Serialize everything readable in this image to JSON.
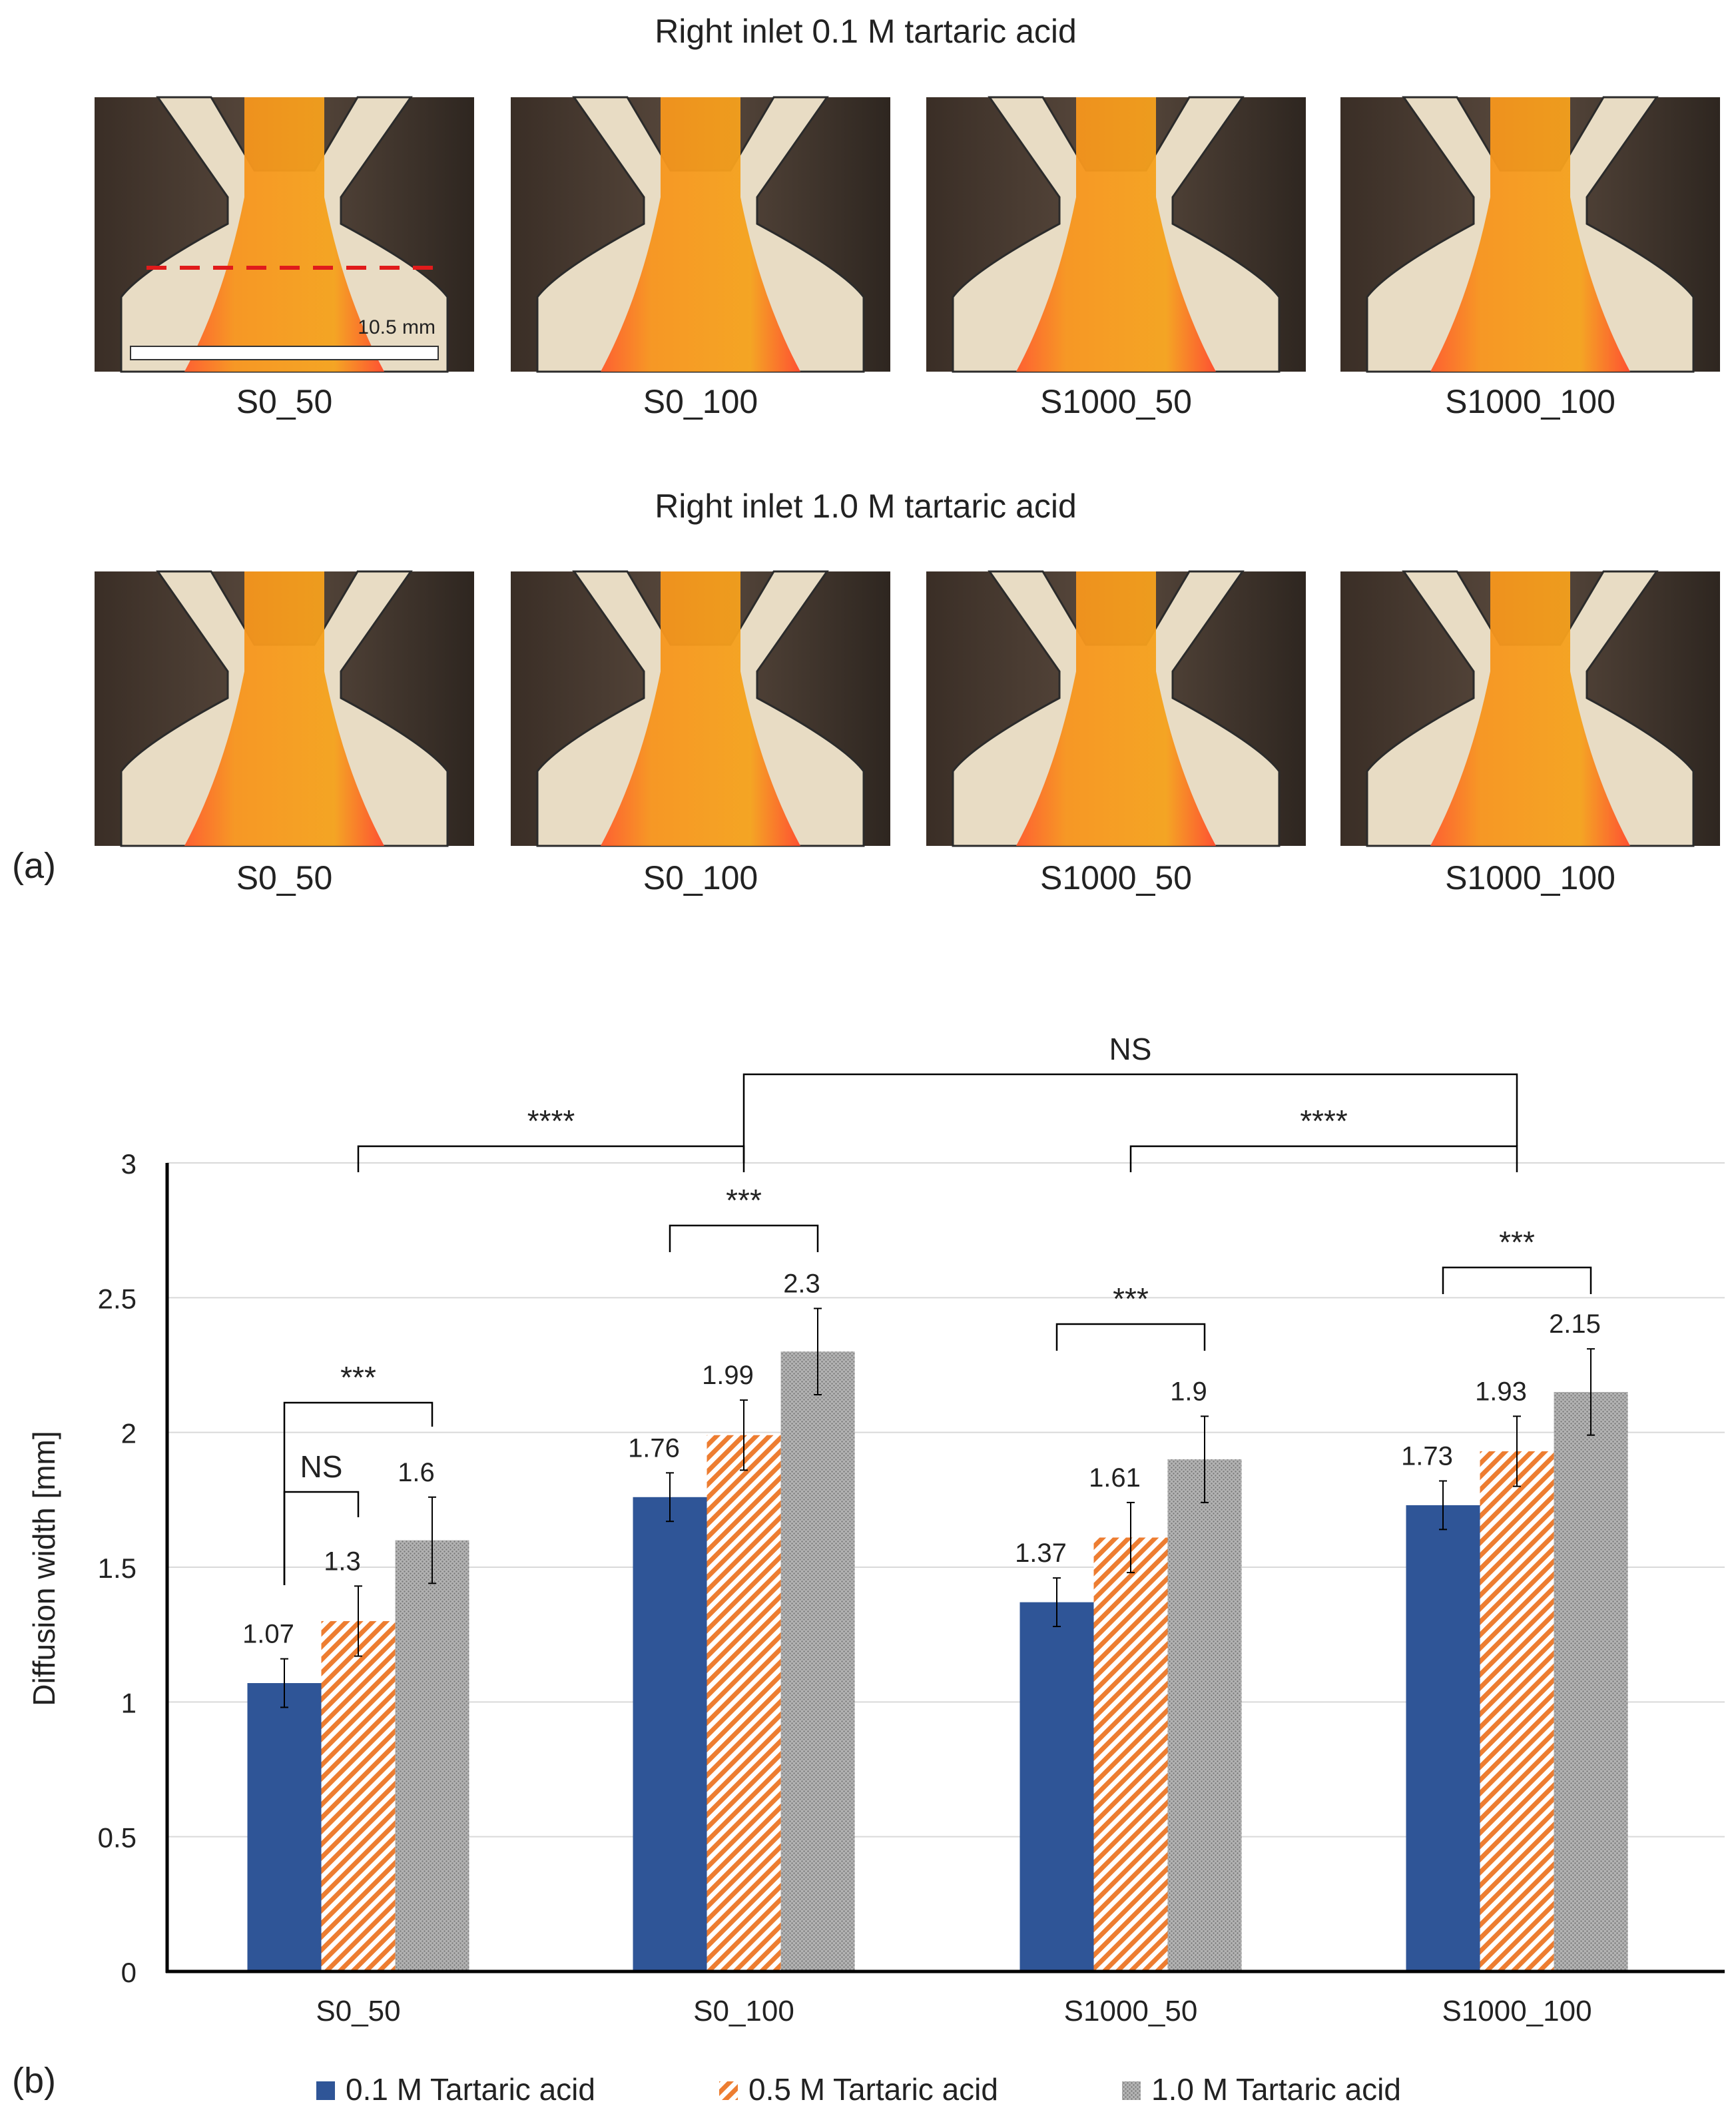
{
  "panel_a": {
    "label": "(a)",
    "rows": [
      {
        "title": "Right inlet 0.1 M tartaric acid",
        "captions": [
          "S0_50",
          "S0_100",
          "S1000_50",
          "S1000_100"
        ]
      },
      {
        "title": "Right inlet 1.0 M tartaric acid",
        "captions": [
          "S0_50",
          "S0_100",
          "S1000_50",
          "S1000_100"
        ]
      }
    ],
    "scale_bar": "10.5 mm",
    "colors": {
      "frame": "#4a3b30",
      "paper": "#e8dcc4",
      "dye": "#f5a21c",
      "acid_front": "#ff4a2a",
      "cut_line": "#e01b1b"
    }
  },
  "panel_b": {
    "label": "(b)",
    "legend": [
      "0.1 M Tartaric acid",
      "0.5 M Tartaric acid",
      "1.0 M Tartaric acid"
    ],
    "colors": [
      "#2f5597",
      "#ed7d31",
      "#a6a6a6"
    ],
    "significance": [
      {
        "text": "NS"
      },
      {
        "text": "****"
      },
      {
        "text": "****"
      },
      {
        "text": "***"
      },
      {
        "text": "***"
      },
      {
        "text": "***"
      },
      {
        "text": "***"
      },
      {
        "text": "NS"
      }
    ]
  },
  "chart_data": {
    "type": "bar",
    "categories": [
      "S0_50",
      "S0_100",
      "S1000_50",
      "S1000_100"
    ],
    "series": [
      {
        "name": "0.1 M Tartaric acid",
        "values": [
          1.07,
          1.76,
          1.37,
          1.73
        ],
        "errors": [
          0.09,
          0.09,
          0.09,
          0.09
        ]
      },
      {
        "name": "0.5 M Tartaric acid",
        "values": [
          1.3,
          1.99,
          1.61,
          1.93
        ],
        "errors": [
          0.13,
          0.13,
          0.13,
          0.13
        ]
      },
      {
        "name": "1.0 M Tartaric acid",
        "values": [
          1.6,
          2.3,
          1.9,
          2.15
        ],
        "errors": [
          0.16,
          0.16,
          0.16,
          0.16
        ]
      }
    ],
    "data_labels": [
      [
        "1.07",
        "1.76",
        "1.37",
        "1.73"
      ],
      [
        "1.3",
        "1.99",
        "1.61",
        "1.93"
      ],
      [
        "1.6",
        "2.3",
        "1.9",
        "2.15"
      ]
    ],
    "ylabel": "Diffusion width [mm]",
    "xlabel": "",
    "ylim": [
      0,
      3
    ],
    "yticks": [
      "0",
      "0.5",
      "1",
      "1.5",
      "2",
      "2.5",
      "3"
    ],
    "grid": true,
    "legend_position": "bottom"
  }
}
